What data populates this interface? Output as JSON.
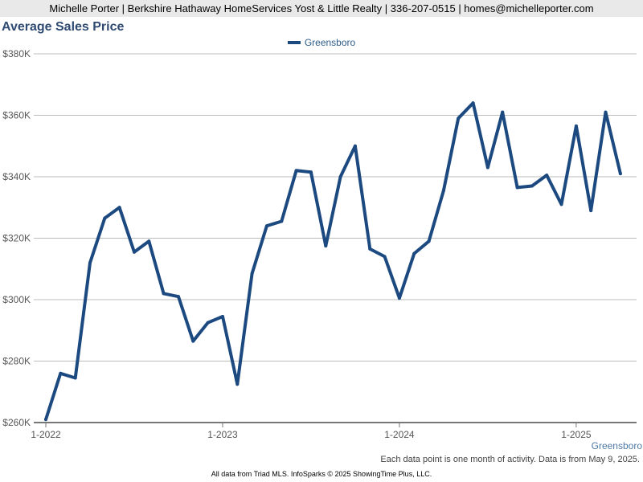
{
  "header": {
    "agent_line": "Michelle Porter | Berkshire Hathaway HomeServices Yost & Little Realty | 336-207-0515 | homes@michelleporter.com"
  },
  "footer": {
    "series_label": "Greensboro",
    "note": "Each data point is one month of activity. Data is from May 9, 2025.",
    "source": "All data from Triad MLS. InfoSparks © 2025 ShowingTime Plus, LLC."
  },
  "chart_data": {
    "type": "line",
    "title": "Average Sales Price",
    "legend_position": "top-center",
    "grid": true,
    "ylim": [
      260000,
      380000
    ],
    "y_ticks": [
      260000,
      280000,
      300000,
      320000,
      340000,
      360000,
      380000
    ],
    "y_tick_labels": [
      "$260K",
      "$280K",
      "$300K",
      "$320K",
      "$340K",
      "$360K",
      "$380K"
    ],
    "x_tick_labels": [
      "1-2022",
      "1-2023",
      "1-2024",
      "1-2025"
    ],
    "colors": {
      "line": "#1c4a80",
      "grid": "#bbbbbb"
    },
    "x": [
      "2022-01",
      "2022-02",
      "2022-03",
      "2022-04",
      "2022-05",
      "2022-06",
      "2022-07",
      "2022-08",
      "2022-09",
      "2022-10",
      "2022-11",
      "2022-12",
      "2023-01",
      "2023-02",
      "2023-03",
      "2023-04",
      "2023-05",
      "2023-06",
      "2023-07",
      "2023-08",
      "2023-09",
      "2023-10",
      "2023-11",
      "2023-12",
      "2024-01",
      "2024-02",
      "2024-03",
      "2024-04",
      "2024-05",
      "2024-06",
      "2024-07",
      "2024-08",
      "2024-09",
      "2024-10",
      "2024-11",
      "2024-12",
      "2025-01",
      "2025-02",
      "2025-03",
      "2025-04"
    ],
    "series": [
      {
        "name": "Greensboro",
        "values": [
          261000,
          276000,
          274500,
          312000,
          326500,
          330000,
          315500,
          319000,
          302000,
          301000,
          286500,
          292500,
          294500,
          272500,
          308500,
          324000,
          325500,
          342000,
          341500,
          317500,
          340000,
          350000,
          316500,
          314000,
          300500,
          315000,
          319000,
          335500,
          359000,
          364000,
          343000,
          361000,
          336500,
          337000,
          340500,
          331000,
          356500,
          329000,
          361000,
          341000
        ]
      }
    ]
  }
}
